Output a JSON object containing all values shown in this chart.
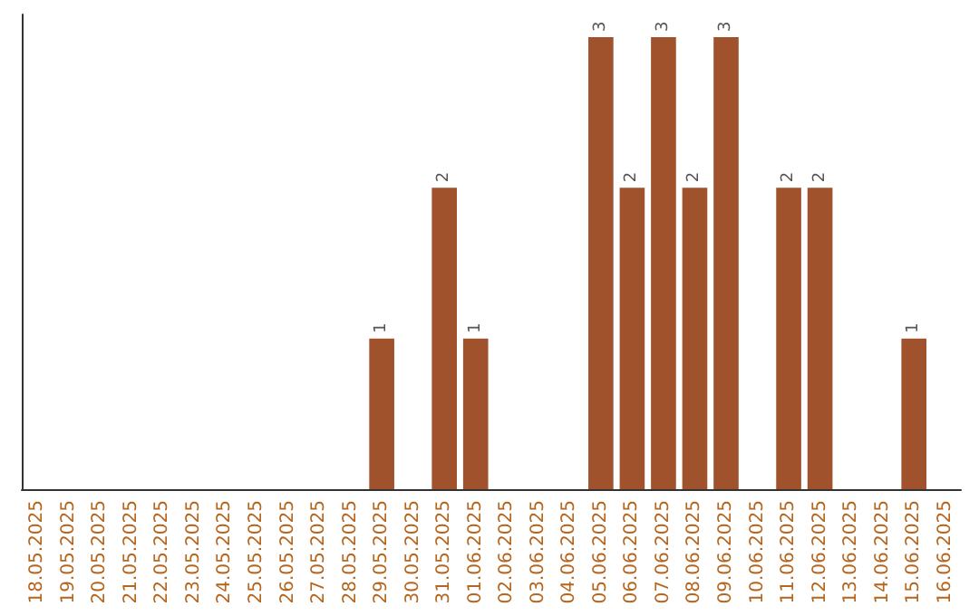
{
  "chart_data": {
    "type": "bar",
    "categories": [
      "18.05.2025",
      "19.05.2025",
      "20.05.2025",
      "21.05.2025",
      "22.05.2025",
      "23.05.2025",
      "24.05.2025",
      "25.05.2025",
      "26.05.2025",
      "27.05.2025",
      "28.05.2025",
      "29.05.2025",
      "30.05.2025",
      "31.05.2025",
      "01.06.2025",
      "02.06.2025",
      "03.06.2025",
      "04.06.2025",
      "05.06.2025",
      "06.06.2025",
      "07.06.2025",
      "08.06.2025",
      "09.06.2025",
      "10.06.2025",
      "11.06.2025",
      "12.06.2025",
      "13.06.2025",
      "14.06.2025",
      "15.06.2025",
      "16.06.2025"
    ],
    "values": [
      null,
      null,
      null,
      null,
      null,
      null,
      null,
      null,
      null,
      null,
      null,
      1,
      null,
      2,
      1,
      null,
      null,
      null,
      3,
      2,
      3,
      2,
      3,
      null,
      2,
      2,
      null,
      null,
      1,
      null
    ],
    "color": "#a0522d",
    "data_labels": true
  }
}
